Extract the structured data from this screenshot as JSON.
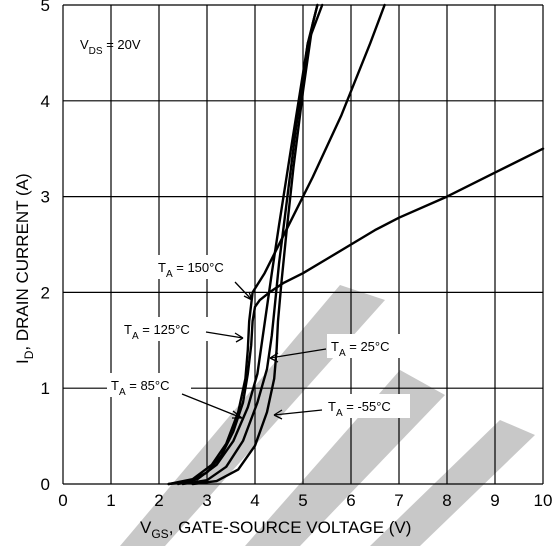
{
  "chart_data": {
    "type": "line",
    "xlabel_main": "V",
    "xlabel_sub": "GS",
    "xlabel_rest": ", GATE-SOURCE VOLTAGE (V)",
    "ylabel_main": "I",
    "ylabel_sub": "D",
    "ylabel_rest": ", DRAIN CURRENT (A)",
    "xlim": [
      0,
      10
    ],
    "ylim": [
      0,
      5
    ],
    "xticks": [
      "0",
      "1",
      "2",
      "3",
      "4",
      "5",
      "6",
      "7",
      "8",
      "9",
      "10"
    ],
    "yticks": [
      "0",
      "1",
      "2",
      "3",
      "4",
      "5"
    ],
    "grid": true,
    "condition": {
      "main": "V",
      "sub": "DS",
      "rest": " = 20V"
    },
    "series": [
      {
        "name": "T_A = 150°C",
        "label_main": "T",
        "label_sub": "A",
        "label_rest": " = 150°C",
        "x": [
          2.2,
          2.6,
          3.0,
          3.3,
          3.55,
          3.75,
          3.85,
          3.92,
          3.95,
          4.0,
          4.1,
          4.3,
          4.6,
          5.0,
          5.5,
          6.0,
          6.5,
          7.0,
          8.0,
          9.0,
          10.0
        ],
        "y": [
          0.0,
          0.02,
          0.12,
          0.3,
          0.55,
          0.85,
          1.15,
          1.45,
          1.7,
          1.85,
          1.92,
          2.0,
          2.1,
          2.2,
          2.35,
          2.5,
          2.65,
          2.78,
          3.0,
          3.25,
          3.5
        ]
      },
      {
        "name": "T_A = 125°C",
        "label_main": "T",
        "label_sub": "A",
        "label_rest": " = 125°C",
        "x": [
          2.2,
          2.7,
          3.1,
          3.4,
          3.65,
          3.8,
          3.85,
          3.88,
          3.95,
          4.2,
          4.6,
          5.2,
          5.8,
          6.4,
          6.7
        ],
        "y": [
          0.0,
          0.05,
          0.2,
          0.42,
          0.75,
          1.1,
          1.4,
          1.7,
          2.0,
          2.2,
          2.6,
          3.2,
          3.85,
          4.6,
          5.0
        ]
      },
      {
        "name": "T_A = 85°C",
        "label_main": "T",
        "label_sub": "A",
        "label_rest": " = 85°C",
        "x": [
          2.4,
          2.8,
          3.2,
          3.55,
          3.85,
          4.05,
          4.15,
          4.25,
          4.35,
          4.5,
          4.75,
          5.1,
          5.4
        ],
        "y": [
          0.0,
          0.05,
          0.2,
          0.45,
          0.8,
          1.15,
          1.5,
          1.85,
          2.2,
          2.7,
          3.5,
          4.6,
          5.0
        ]
      },
      {
        "name": "T_A = 25°C",
        "label_main": "T",
        "label_sub": "A",
        "label_rest": " = 25°C",
        "x": [
          2.5,
          3.0,
          3.4,
          3.75,
          4.05,
          4.25,
          4.35,
          4.42,
          4.5,
          4.65,
          4.85,
          5.1,
          5.3
        ],
        "y": [
          0.0,
          0.04,
          0.18,
          0.45,
          0.85,
          1.2,
          1.55,
          1.9,
          2.3,
          2.9,
          3.7,
          4.6,
          5.0
        ]
      },
      {
        "name": "T_A = -55°C",
        "label_main": "T",
        "label_sub": "A",
        "label_rest": " = -55°C",
        "x": [
          2.7,
          3.2,
          3.65,
          4.0,
          4.25,
          4.4,
          4.45,
          4.48,
          4.55,
          4.65,
          4.8,
          5.0,
          5.2,
          5.3
        ],
        "y": [
          0.0,
          0.03,
          0.15,
          0.4,
          0.75,
          1.1,
          1.4,
          1.7,
          2.1,
          2.6,
          3.3,
          4.1,
          4.8,
          5.0
        ]
      }
    ]
  }
}
